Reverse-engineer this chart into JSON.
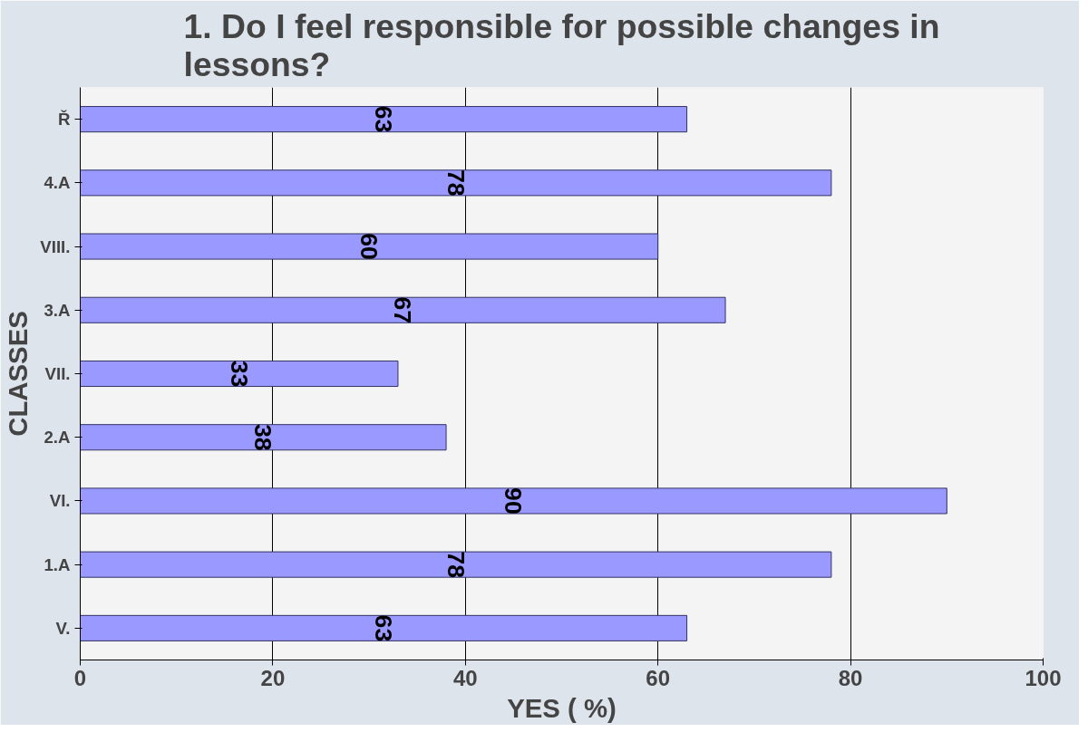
{
  "chart_data": {
    "type": "bar",
    "orientation": "horizontal",
    "title": "1. Do I feel responsible for possible changes in lessons?",
    "xlabel": "YES ( %)",
    "ylabel": "CLASSES",
    "categories": [
      "Ř",
      "4.A",
      "VIII.",
      "3.A",
      "VII.",
      "2.A",
      "VI.",
      "1.A",
      "V."
    ],
    "values": [
      63,
      78,
      60,
      67,
      33,
      38,
      90,
      78,
      63
    ],
    "color": "#9999ff",
    "xlim": [
      0,
      100
    ],
    "xticks": [
      0,
      20,
      40,
      60,
      80,
      100
    ],
    "grid": "x",
    "data_labels": true
  }
}
